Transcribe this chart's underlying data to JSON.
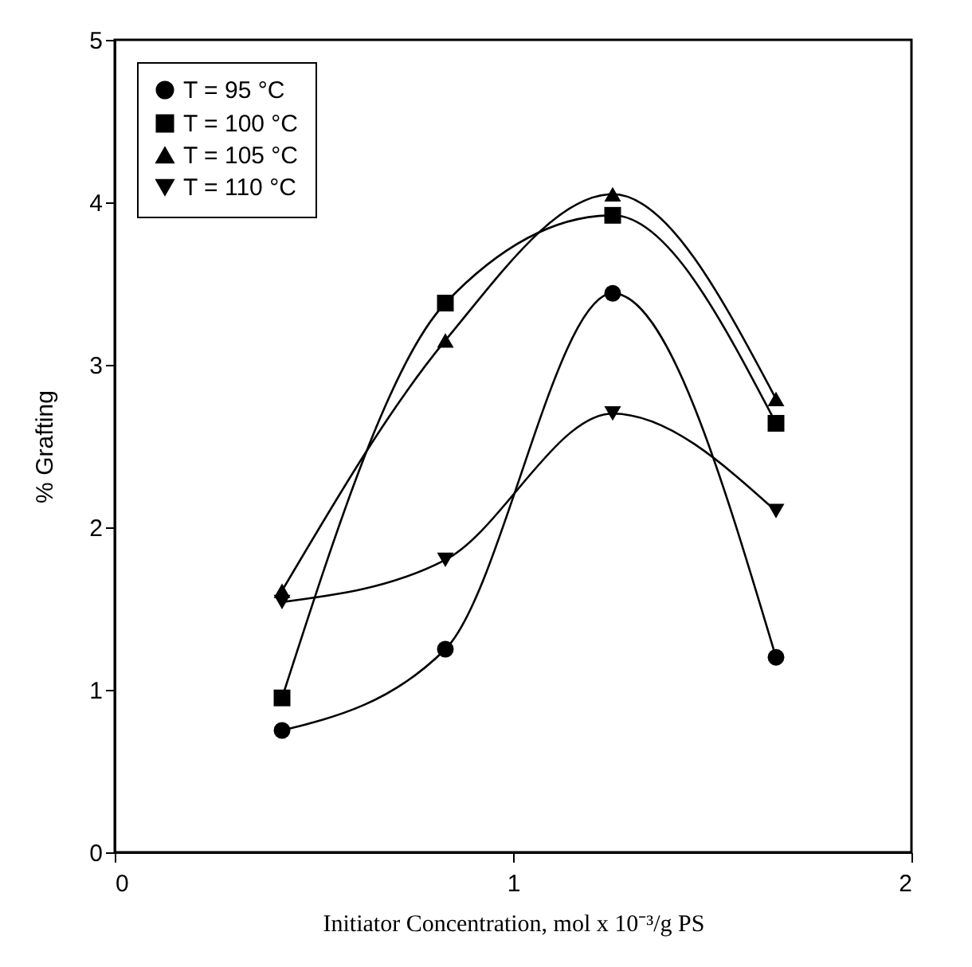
{
  "chart_data": {
    "type": "line",
    "xlabel": "Initiator Concentration, mol x 10⁻³/g PS",
    "ylabel": "% Grafting",
    "x": [
      0.42,
      0.83,
      1.25,
      1.66
    ],
    "series": [
      {
        "name": "T = 95 °C",
        "color": "#000000",
        "marker": "circle",
        "values": [
          0.75,
          1.25,
          3.44,
          1.2
        ]
      },
      {
        "name": "T = 100 °C",
        "color": "#000000",
        "marker": "square",
        "values": [
          0.95,
          3.38,
          3.92,
          2.64
        ]
      },
      {
        "name": "T = 105 °C",
        "color": "#000000",
        "marker": "triangle",
        "values": [
          1.61,
          3.15,
          4.05,
          2.79
        ]
      },
      {
        "name": "T = 110 °C",
        "color": "#000000",
        "marker": "triangle-down",
        "values": [
          1.54,
          1.8,
          2.7,
          2.1
        ]
      }
    ],
    "xlim": [
      0,
      2
    ],
    "xticks": [
      0,
      1,
      2
    ],
    "ylim": [
      0,
      5
    ],
    "yticks": [
      0,
      1,
      2,
      3,
      4,
      5
    ],
    "grid": false,
    "legend": "top left"
  }
}
